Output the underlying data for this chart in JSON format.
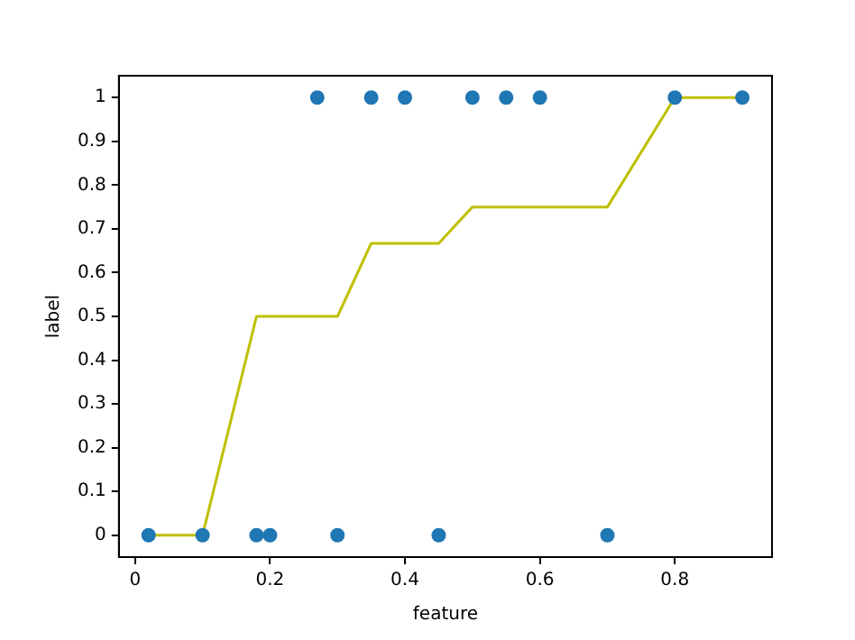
{
  "chart_data": {
    "type": "scatter",
    "xlabel": "feature",
    "ylabel": "label",
    "xlim": [
      -0.024,
      0.944
    ],
    "ylim": [
      -0.05,
      1.05
    ],
    "xticks": [
      0,
      0.2,
      0.4,
      0.6,
      0.8
    ],
    "yticks": [
      0,
      0.1,
      0.2,
      0.3,
      0.4,
      0.5,
      0.6,
      0.7,
      0.8,
      0.9,
      1
    ],
    "grid": false,
    "legend": false,
    "series": [
      {
        "marker": "circle",
        "color": "#1f77b4",
        "x": [
          0.02,
          0.1,
          0.18,
          0.2,
          0.3,
          0.45,
          0.7,
          0.27,
          0.35,
          0.4,
          0.5,
          0.55,
          0.6,
          0.8,
          0.9
        ],
        "values": [
          0,
          0,
          0,
          0,
          0,
          0,
          0,
          1,
          1,
          1,
          1,
          1,
          1,
          1,
          1
        ]
      },
      {
        "type": "line",
        "marker": "none",
        "color": "#bfbf00",
        "x": [
          0.02,
          0.1,
          0.18,
          0.3,
          0.35,
          0.45,
          0.5,
          0.7,
          0.8,
          0.9
        ],
        "values": [
          0,
          0,
          0.5,
          0.5,
          0.667,
          0.667,
          0.75,
          0.75,
          1,
          1
        ]
      }
    ]
  }
}
